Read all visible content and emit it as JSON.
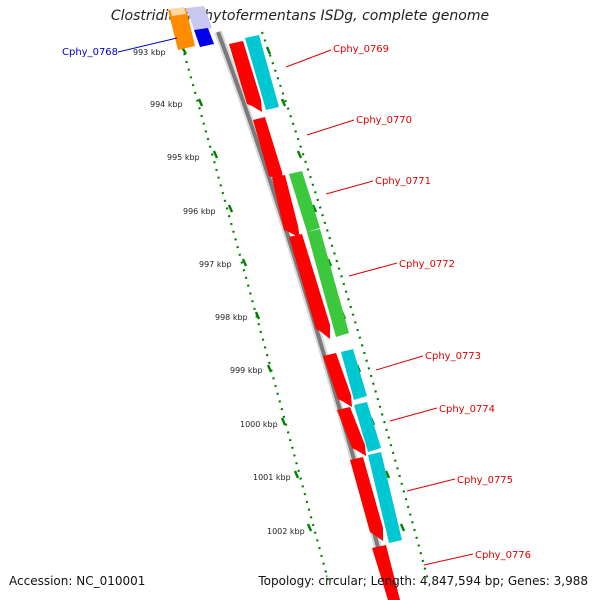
{
  "title": "Clostridium phytofermentans ISDg, complete genome",
  "accession": "Accession: NC_010001",
  "stats": "Topology: circular; Length: 4,847,594 bp; Genes: 3,988",
  "colors": {
    "backbone": "#7a7a7a",
    "cds": "#ff0000",
    "cds_selected": "#0000ff",
    "rna_orange": "#ff8c00",
    "cyan": "#00c8d2",
    "green": "#3cc83c",
    "ticks": "#008000",
    "label_red": "#e00000",
    "label_blue": "#0000cc"
  },
  "scale_labels": [
    "993 kbp",
    "994 kbp",
    "995 kbp",
    "996 kbp",
    "997 kbp",
    "998 kbp",
    "999 kbp",
    "1000 kbp",
    "1001 kbp",
    "1002 kbp"
  ],
  "genes": [
    {
      "name": "Cphy_0768",
      "color": "blue"
    },
    {
      "name": "Cphy_0769",
      "color": "red"
    },
    {
      "name": "Cphy_0770",
      "color": "red"
    },
    {
      "name": "Cphy_0771",
      "color": "red"
    },
    {
      "name": "Cphy_0772",
      "color": "red"
    },
    {
      "name": "Cphy_0773",
      "color": "red"
    },
    {
      "name": "Cphy_0774",
      "color": "red"
    },
    {
      "name": "Cphy_0775",
      "color": "red"
    },
    {
      "name": "Cphy_0776",
      "color": "red"
    }
  ]
}
